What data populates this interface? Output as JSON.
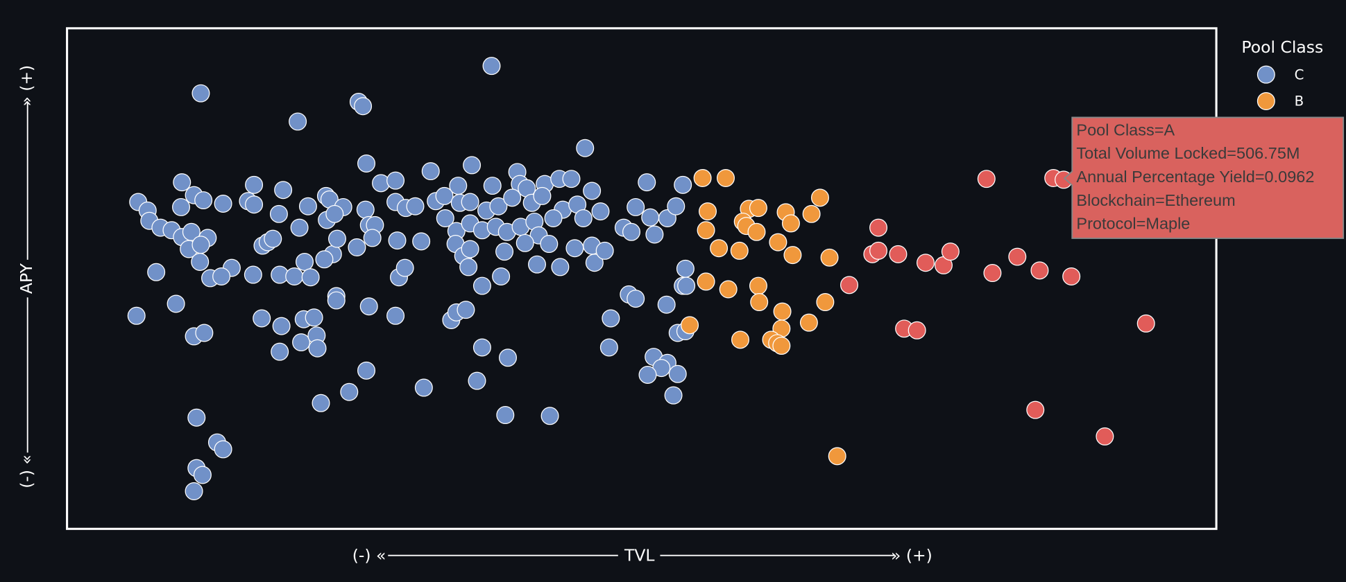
{
  "chart_data": {
    "type": "scatter",
    "x_axis": {
      "label": "TVL",
      "min_label": "(-) «",
      "max_label": "» (+)"
    },
    "y_axis": {
      "label": "APY",
      "min_label": "(-) «",
      "max_label": "» (+)"
    },
    "xlim": [
      0,
      1340
    ],
    "ylim": [
      0,
      585
    ],
    "legend_title": "Pool Class",
    "legend": "upper right",
    "series": [
      {
        "name": "C",
        "color": "#7191c8",
        "x": [
          495,
          156,
          269,
          340,
          345,
          604,
          349,
          472,
          424,
          525,
          134,
          218,
          252,
          366,
          383,
          456,
          496,
          528,
          536,
          557,
          574,
          588,
          612,
          676,
          718,
          83,
          148,
          159,
          182,
          133,
          211,
          218,
          281,
          302,
          306,
          322,
          348,
          383,
          395,
          406,
          430,
          440,
          458,
          470,
          489,
          503,
          519,
          542,
          554,
          578,
          595,
          622,
          663,
          680,
          700,
          710,
          94,
          96,
          109,
          122,
          134,
          145,
          164,
          247,
          271,
          303,
          312,
          352,
          359,
          356,
          385,
          413,
          441,
          454,
          470,
          484,
          500,
          513,
          529,
          545,
          550,
          567,
          602,
          649,
          658,
          685,
          142,
          156,
          155,
          192,
          167,
          180,
          104,
          217,
          228,
          234,
          240,
          248,
          265,
          277,
          284,
          310,
          315,
          300,
          338,
          387,
          394,
          453,
          462,
          468,
          470,
          484,
          506,
          510,
          534,
          548,
          562,
          575,
          592,
          612,
          615,
          627,
          721,
          718,
          722,
          127,
          81,
          227,
          250,
          276,
          288,
          314,
          314,
          352,
          383,
          448,
          454,
          465,
          148,
          160,
          248,
          273,
          291,
          292,
          349,
          484,
          514,
          634,
          632,
          655,
          663,
          699,
          684,
          700,
          693,
          677,
          712,
          712,
          721,
          707,
          478,
          416,
          329,
          296,
          511,
          563,
          151,
          175,
          182,
          151,
          158,
          148
        ],
        "values": [
          541,
          509,
          476,
          499,
          494,
          445,
          427,
          425,
          418,
          417,
          405,
          402,
          396,
          404,
          407,
          401,
          401,
          403,
          398,
          403,
          409,
          409,
          395,
          405,
          402,
          382,
          390,
          384,
          380,
          376,
          383,
          379,
          377,
          389,
          385,
          376,
          373,
          382,
          375,
          377,
          383,
          389,
          381,
          382,
          372,
          377,
          387,
          381,
          389,
          373,
          379,
          371,
          376,
          364,
          363,
          377,
          372,
          360,
          352,
          349,
          341,
          347,
          340,
          368,
          352,
          361,
          368,
          355,
          355,
          340,
          337,
          336,
          363,
          348,
          357,
          349,
          353,
          347,
          353,
          359,
          343,
          363,
          363,
          352,
          347,
          344,
          327,
          332,
          312,
          305,
          293,
          295,
          300,
          297,
          331,
          335,
          339,
          297,
          295,
          312,
          294,
          321,
          339,
          315,
          329,
          294,
          305,
          333,
          319,
          306,
          327,
          284,
          295,
          324,
          334,
          309,
          333,
          306,
          328,
          331,
          311,
          325,
          304,
          284,
          284,
          263,
          249,
          246,
          237,
          245,
          247,
          272,
          267,
          260,
          249,
          244,
          253,
          256,
          225,
          229,
          207,
          218,
          226,
          211,
          185,
          212,
          200,
          246,
          212,
          274,
          269,
          262,
          201,
          194,
          188,
          180,
          181,
          229,
          231,
          156,
          173,
          165,
          160,
          147,
          133,
          132,
          130,
          101,
          93,
          71,
          63,
          44
        ]
      },
      {
        "name": "B",
        "color": "#f0983c",
        "x": [
          741,
          768,
          747,
          745,
          795,
          806,
          788,
          792,
          804,
          838,
          844,
          878,
          868,
          760,
          784,
          829,
          846,
          889,
          745,
          771,
          806,
          807,
          834,
          884,
          865,
          726,
          833,
          785,
          821,
          828,
          833,
          898
        ],
        "values": [
          410,
          410,
          371,
          349,
          374,
          375,
          359,
          354,
          347,
          370,
          357,
          387,
          368,
          328,
          325,
          335,
          320,
          317,
          289,
          280,
          284,
          265,
          254,
          265,
          241,
          238,
          234,
          221,
          221,
          217,
          214,
          85
        ]
      },
      {
        "name": "A",
        "color": "#e15c59",
        "x": [
          1072,
          1150,
          1162,
          946,
          939,
          946,
          969,
          1001,
          1022,
          1030,
          1079,
          1108,
          1134,
          1171,
          912,
          976,
          991,
          1258,
          1129,
          1210
        ],
        "values": [
          409,
          410,
          408,
          352,
          321,
          325,
          321,
          311,
          308,
          324,
          299,
          318,
          302,
          295,
          285,
          234,
          232,
          240,
          139,
          108
        ]
      }
    ],
    "tooltip": {
      "lines": [
        "Pool Class=A",
        "Total Volume Locked=506.75M",
        "Annual Percentage Yield=0.0962",
        "Blockchain=Ethereum",
        "Protocol=Maple"
      ]
    }
  }
}
